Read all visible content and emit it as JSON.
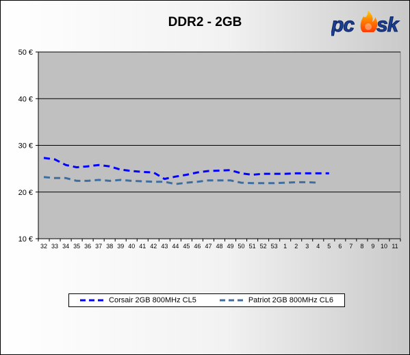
{
  "chart_data": {
    "type": "line",
    "title": "DDR2 - 2GB",
    "xlabel": "",
    "ylabel": "",
    "ylim": [
      10,
      50
    ],
    "yticks": [
      "10 €",
      "20 €",
      "30 €",
      "40 €",
      "50 €"
    ],
    "ytick_values": [
      10,
      20,
      30,
      40,
      50
    ],
    "categories": [
      "32",
      "33",
      "34",
      "35",
      "36",
      "37",
      "38",
      "39",
      "40",
      "41",
      "42",
      "43",
      "44",
      "45",
      "46",
      "47",
      "48",
      "49",
      "50",
      "51",
      "52",
      "53",
      "1",
      "2",
      "3",
      "4",
      "5",
      "6",
      "7",
      "8",
      "9",
      "10",
      "11"
    ],
    "series": [
      {
        "name": "Corsair 2GB 800MHz CL5",
        "color": "#0000ff",
        "values": [
          27.3,
          27.0,
          25.8,
          25.3,
          25.5,
          25.8,
          25.5,
          24.8,
          24.5,
          24.3,
          24.2,
          22.8,
          23.3,
          23.7,
          24.2,
          24.5,
          24.6,
          24.7,
          24.0,
          23.7,
          23.9,
          23.9,
          23.9,
          24.0,
          24.0,
          24.0,
          24.0,
          null,
          null,
          null,
          null,
          null,
          null
        ]
      },
      {
        "name": "Patriot 2GB 800MHz CL6",
        "color": "#3f6e9e",
        "values": [
          23.2,
          23.0,
          23.0,
          22.4,
          22.4,
          22.6,
          22.4,
          22.6,
          22.4,
          22.3,
          22.2,
          22.2,
          21.7,
          22.0,
          22.2,
          22.5,
          22.5,
          22.5,
          22.0,
          21.9,
          21.9,
          21.9,
          22.0,
          22.1,
          22.1,
          22.0,
          null,
          null,
          null,
          null,
          null,
          null,
          null
        ]
      }
    ],
    "grid": "horizontal",
    "legend_position": "bottom"
  },
  "logo": {
    "text": "pc sk"
  }
}
